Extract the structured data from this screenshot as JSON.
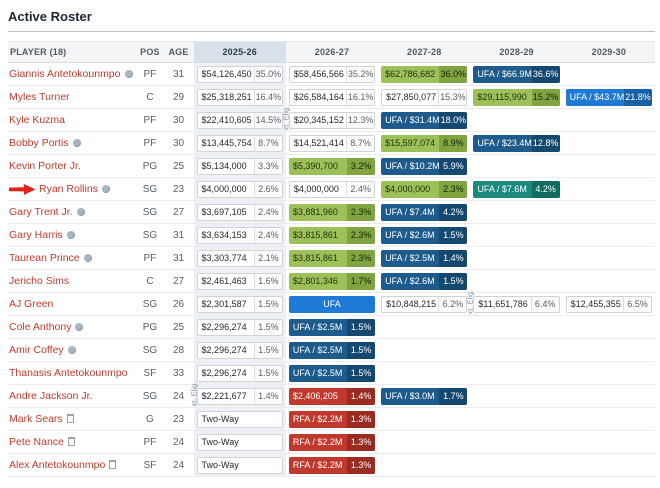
{
  "title": "Active Roster",
  "columns": [
    "PLAYER (18)",
    "POS",
    "AGE",
    "2025-26",
    "2026-27",
    "2027-28",
    "2028-29",
    "2029-30"
  ],
  "ext_label": "xt. Elig.",
  "colors": {
    "link_red": "#c03a2b",
    "green_cell": "#9cc159",
    "navy_cell": "#1d5b8d",
    "blue_cell": "#1e7ad4",
    "red_cell": "#c1392d",
    "teal_cell": "#1a8a7e",
    "highlight_column_bg": "#edf1f6",
    "annotation_arrow": "#e02417"
  },
  "rows": [
    {
      "player": "Giannis Antetokounmpo",
      "icon": "bird",
      "pos": "PF",
      "age": "31",
      "arrow": false,
      "cells": [
        {
          "text": "$54,126,450",
          "pct": "35.0%",
          "style": "white"
        },
        {
          "text": "$58,456,566",
          "pct": "35.2%",
          "style": "white"
        },
        {
          "text": "$62,786,682",
          "pct": "36.0%",
          "style": "green"
        },
        {
          "text": "UFA / $66.9M",
          "pct": "36.6%",
          "style": "navy"
        },
        null
      ]
    },
    {
      "player": "Myles Turner",
      "icon": null,
      "pos": "C",
      "age": "29",
      "arrow": false,
      "cells": [
        {
          "text": "$25,318,251",
          "pct": "16.4%",
          "style": "white"
        },
        {
          "text": "$26,584,164",
          "pct": "16.1%",
          "style": "white"
        },
        {
          "text": "$27,850,077",
          "pct": "15.3%",
          "style": "white"
        },
        {
          "text": "$29,115,990",
          "pct": "15.2%",
          "style": "green"
        },
        {
          "text": "UFA / $43.7M",
          "pct": "21.8%",
          "style": "blue"
        }
      ]
    },
    {
      "player": "Kyle Kuzma",
      "icon": null,
      "pos": "PF",
      "age": "30",
      "arrow": false,
      "cells": [
        {
          "text": "$22,410,605",
          "pct": "14.5%",
          "style": "white"
        },
        {
          "text": "$20,345,152",
          "pct": "12.3%",
          "style": "white",
          "ext": true
        },
        {
          "text": "UFA / $31.4M",
          "pct": "18.0%",
          "style": "navy"
        },
        null,
        null
      ]
    },
    {
      "player": "Bobby Portis",
      "icon": "bird",
      "pos": "PF",
      "age": "30",
      "arrow": false,
      "cells": [
        {
          "text": "$13,445,754",
          "pct": "8.7%",
          "style": "white"
        },
        {
          "text": "$14,521,414",
          "pct": "8.7%",
          "style": "white"
        },
        {
          "text": "$15,597,074",
          "pct": "8.9%",
          "style": "green"
        },
        {
          "text": "UFA / $23.4M",
          "pct": "12.8%",
          "style": "navy"
        },
        null
      ]
    },
    {
      "player": "Kevin Porter Jr.",
      "icon": null,
      "pos": "PG",
      "age": "25",
      "arrow": false,
      "cells": [
        {
          "text": "$5,134,000",
          "pct": "3.3%",
          "style": "white"
        },
        {
          "text": "$5,390,700",
          "pct": "3.2%",
          "style": "green"
        },
        {
          "text": "UFA / $10.2M",
          "pct": "5.9%",
          "style": "navy"
        },
        null,
        null
      ]
    },
    {
      "player": "Ryan Rollins",
      "icon": "bird",
      "pos": "SG",
      "age": "23",
      "arrow": true,
      "cells": [
        {
          "text": "$4,000,000",
          "pct": "2.6%",
          "style": "white"
        },
        {
          "text": "$4,000,000",
          "pct": "2.4%",
          "style": "white"
        },
        {
          "text": "$4,000,000",
          "pct": "2.3%",
          "style": "green"
        },
        {
          "text": "UFA / $7.6M",
          "pct": "4.2%",
          "style": "teal"
        },
        null
      ]
    },
    {
      "player": "Gary Trent Jr.",
      "icon": "bird",
      "pos": "SG",
      "age": "27",
      "arrow": false,
      "cells": [
        {
          "text": "$3,697,105",
          "pct": "2.4%",
          "style": "white"
        },
        {
          "text": "$3,881,960",
          "pct": "2.3%",
          "style": "green"
        },
        {
          "text": "UFA / $7.4M",
          "pct": "4.2%",
          "style": "navy"
        },
        null,
        null
      ]
    },
    {
      "player": "Gary Harris",
      "icon": "bird",
      "pos": "SG",
      "age": "31",
      "arrow": false,
      "cells": [
        {
          "text": "$3,634,153",
          "pct": "2.4%",
          "style": "white"
        },
        {
          "text": "$3,815,861",
          "pct": "2.3%",
          "style": "green"
        },
        {
          "text": "UFA / $2.6M",
          "pct": "1.5%",
          "style": "navy"
        },
        null,
        null
      ]
    },
    {
      "player": "Taurean Prince",
      "icon": "bird",
      "pos": "PF",
      "age": "31",
      "arrow": false,
      "cells": [
        {
          "text": "$3,303,774",
          "pct": "2.1%",
          "style": "white"
        },
        {
          "text": "$3,815,861",
          "pct": "2.3%",
          "style": "green"
        },
        {
          "text": "UFA / $2.5M",
          "pct": "1.4%",
          "style": "navy"
        },
        null,
        null
      ]
    },
    {
      "player": "Jericho Sims",
      "icon": null,
      "pos": "C",
      "age": "27",
      "arrow": false,
      "cells": [
        {
          "text": "$2,461,463",
          "pct": "1.6%",
          "style": "white"
        },
        {
          "text": "$2,801,346",
          "pct": "1.7%",
          "style": "green"
        },
        {
          "text": "UFA / $2.6M",
          "pct": "1.5%",
          "style": "navy"
        },
        null,
        null
      ]
    },
    {
      "player": "AJ Green",
      "icon": null,
      "pos": "SG",
      "age": "26",
      "arrow": false,
      "cells": [
        {
          "text": "$2,301,587",
          "pct": "1.5%",
          "style": "white"
        },
        {
          "text": "UFA",
          "pct": null,
          "style": "blue",
          "center": true
        },
        {
          "text": "$10,848,215",
          "pct": "6.2%",
          "style": "white"
        },
        {
          "text": "$11,651,786",
          "pct": "6.4%",
          "style": "white",
          "ext": true
        },
        {
          "text": "$12,455,355",
          "pct": "6.5%",
          "style": "white"
        }
      ]
    },
    {
      "player": "Cole Anthony",
      "icon": "bird",
      "pos": "PG",
      "age": "25",
      "arrow": false,
      "cells": [
        {
          "text": "$2,296,274",
          "pct": "1.5%",
          "style": "white"
        },
        {
          "text": "UFA / $2.5M",
          "pct": "1.5%",
          "style": "navy"
        },
        null,
        null,
        null
      ]
    },
    {
      "player": "Amir Coffey",
      "icon": "bird",
      "pos": "SG",
      "age": "28",
      "arrow": false,
      "cells": [
        {
          "text": "$2,296,274",
          "pct": "1.5%",
          "style": "white"
        },
        {
          "text": "UFA / $2.5M",
          "pct": "1.5%",
          "style": "navy"
        },
        null,
        null,
        null
      ]
    },
    {
      "player": "Thanasis Antetokounmpo",
      "icon": null,
      "pos": "SF",
      "age": "33",
      "arrow": false,
      "cells": [
        {
          "text": "$2,296,274",
          "pct": "1.5%",
          "style": "white"
        },
        {
          "text": "UFA / $2.5M",
          "pct": "1.5%",
          "style": "navy"
        },
        null,
        null,
        null
      ]
    },
    {
      "player": "Andre Jackson Jr.",
      "icon": null,
      "pos": "SG",
      "age": "24",
      "arrow": false,
      "cells": [
        {
          "text": "$2,221,677",
          "pct": "1.4%",
          "style": "white",
          "ext": true
        },
        {
          "text": "$2,406,205",
          "pct": "1.4%",
          "style": "red"
        },
        {
          "text": "UFA / $3.0M",
          "pct": "1.7%",
          "style": "navy"
        },
        null,
        null
      ]
    },
    {
      "player": "Mark Sears",
      "icon": "doc",
      "pos": "G",
      "age": "23",
      "arrow": false,
      "cells": [
        {
          "text": "Two-Way",
          "pct": null,
          "style": "white"
        },
        {
          "text": "RFA / $2.2M",
          "pct": "1.3%",
          "style": "red"
        },
        null,
        null,
        null
      ]
    },
    {
      "player": "Pete Nance",
      "icon": "doc",
      "pos": "PF",
      "age": "24",
      "arrow": false,
      "cells": [
        {
          "text": "Two-Way",
          "pct": null,
          "style": "white"
        },
        {
          "text": "RFA / $2.2M",
          "pct": "1.3%",
          "style": "red"
        },
        null,
        null,
        null
      ]
    },
    {
      "player": "Alex Antetokounmpo",
      "icon": "doc",
      "pos": "SF",
      "age": "24",
      "arrow": false,
      "cells": [
        {
          "text": "Two-Way",
          "pct": null,
          "style": "white"
        },
        {
          "text": "RFA / $2.2M",
          "pct": "1.3%",
          "style": "red"
        },
        null,
        null,
        null
      ]
    }
  ]
}
